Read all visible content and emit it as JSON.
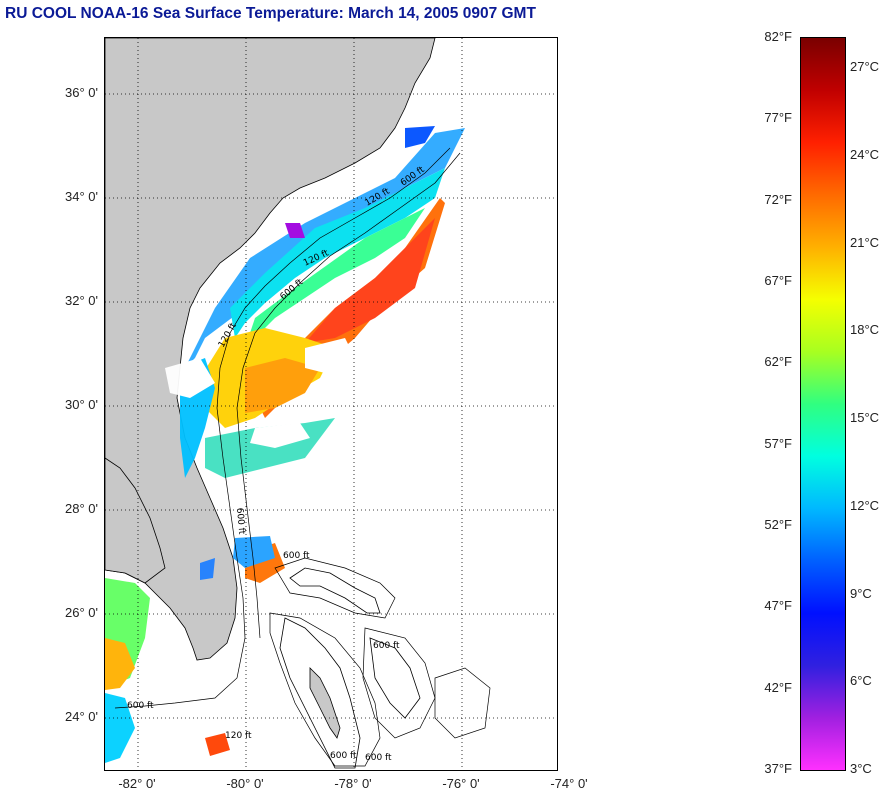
{
  "title": "RU COOL  NOAA-16  Sea Surface Temperature:  March 14, 2005 0907 GMT",
  "map": {
    "lat_labels": [
      {
        "value": 36,
        "text": "36° 0'"
      },
      {
        "value": 34,
        "text": "34° 0'"
      },
      {
        "value": 32,
        "text": "32° 0'"
      },
      {
        "value": 30,
        "text": "30° 0'"
      },
      {
        "value": 28,
        "text": "28° 0'"
      },
      {
        "value": 26,
        "text": "26° 0'"
      },
      {
        "value": 24,
        "text": "24° 0'"
      }
    ],
    "lon_labels": [
      {
        "value": -82,
        "text": "-82° 0'"
      },
      {
        "value": -80,
        "text": "-80° 0'"
      },
      {
        "value": -78,
        "text": "-78° 0'"
      },
      {
        "value": -76,
        "text": "-76° 0'"
      },
      {
        "value": -74,
        "text": "-74° 0'"
      }
    ],
    "contour_labels": [
      "120 ft",
      "600 ft"
    ],
    "colors": {
      "land": "#c8c8c8",
      "ocean_nodata": "#ffffff",
      "grid": "#000000"
    }
  },
  "colorbar": {
    "fahrenheit_labels": [
      "82°F",
      "77°F",
      "72°F",
      "67°F",
      "62°F",
      "57°F",
      "52°F",
      "47°F",
      "42°F",
      "37°F"
    ],
    "celsius_labels": [
      "27°C",
      "24°C",
      "21°C",
      "18°C",
      "15°C",
      "12°C",
      "9°C",
      "6°C",
      "3°C"
    ],
    "stops": [
      "#7a0000",
      "#c00000",
      "#ff2000",
      "#ff6a00",
      "#ffb000",
      "#f5ff00",
      "#a8ff20",
      "#30ff80",
      "#00ffe0",
      "#00b8ff",
      "#0060ff",
      "#0010ff",
      "#3020e0",
      "#a020e0",
      "#ff30ff"
    ]
  }
}
